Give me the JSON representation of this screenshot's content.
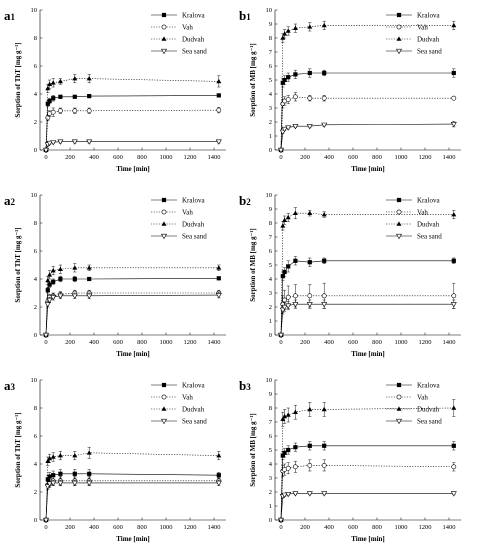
{
  "figure": {
    "legend_names": [
      "Kralova",
      "Vah",
      "Dudvah",
      "Sea sand"
    ],
    "x_label": "Time [min]",
    "x_ticks": [
      0,
      200,
      400,
      600,
      800,
      1000,
      1200,
      1400
    ]
  },
  "chart_data": [
    {
      "type": "line",
      "label": "a1",
      "label_letter": "a",
      "label_sub": "1",
      "xlim": [
        -50,
        1500
      ],
      "ylim": [
        0,
        10
      ],
      "yticks": [
        0,
        2,
        4,
        6,
        8,
        10
      ],
      "xlabel": "Time [min]",
      "ylabel": "Sorption of ThT [mg g⁻¹]",
      "x": [
        0,
        15,
        30,
        60,
        120,
        240,
        360,
        1440
      ],
      "series": [
        {
          "name": "Kralova",
          "marker": "square",
          "dash": "solid",
          "values": [
            0,
            3.3,
            3.5,
            3.7,
            3.8,
            3.8,
            3.85,
            3.9
          ],
          "errors": [
            0,
            0.2,
            0.2,
            0.2,
            0.1,
            0.1,
            0.1,
            0.1
          ]
        },
        {
          "name": "Vah",
          "marker": "circle",
          "dash": "dot",
          "values": [
            0,
            2.3,
            2.6,
            2.7,
            2.8,
            2.8,
            2.8,
            2.85
          ],
          "errors": [
            0,
            0.2,
            0.2,
            0.3,
            0.2,
            0.2,
            0.2,
            0.2
          ]
        },
        {
          "name": "Dudvah",
          "marker": "triangle",
          "dash": "dot",
          "values": [
            0,
            4.4,
            4.7,
            4.8,
            4.9,
            5.1,
            5.1,
            4.9
          ],
          "errors": [
            0,
            0.3,
            0.3,
            0.3,
            0.2,
            0.3,
            0.3,
            0.4
          ]
        },
        {
          "name": "Sea sand",
          "marker": "triangle-down",
          "dash": "solid",
          "values": [
            0,
            0.4,
            0.5,
            0.55,
            0.6,
            0.6,
            0.6,
            0.6
          ],
          "errors": [
            0,
            0.1,
            0.1,
            0.1,
            0.1,
            0.1,
            0.1,
            0.1
          ]
        }
      ]
    },
    {
      "type": "line",
      "label": "b1",
      "label_letter": "b",
      "label_sub": "1",
      "xlim": [
        -50,
        1500
      ],
      "ylim": [
        0,
        10
      ],
      "yticks": [
        0,
        1,
        2,
        3,
        4,
        5,
        6,
        7,
        8,
        9,
        10
      ],
      "xlabel": "Time [min]",
      "ylabel": "Sorption of MB [mg g⁻¹]",
      "x": [
        0,
        15,
        30,
        60,
        120,
        240,
        360,
        1440
      ],
      "series": [
        {
          "name": "Kralova",
          "marker": "square",
          "dash": "solid",
          "values": [
            0,
            4.8,
            5.0,
            5.2,
            5.4,
            5.5,
            5.5,
            5.5
          ],
          "errors": [
            0,
            0.3,
            0.3,
            0.3,
            0.3,
            0.3,
            0.2,
            0.3
          ]
        },
        {
          "name": "Vah",
          "marker": "circle",
          "dash": "dot",
          "values": [
            0,
            3.3,
            3.5,
            3.6,
            3.8,
            3.7,
            3.7,
            3.7
          ],
          "errors": [
            0,
            0.3,
            0.3,
            0.3,
            0.3,
            0.2,
            0.2,
            0.1
          ]
        },
        {
          "name": "Dudvah",
          "marker": "triangle",
          "dash": "dot",
          "values": [
            0,
            8.0,
            8.3,
            8.5,
            8.7,
            8.8,
            8.9,
            8.9
          ],
          "errors": [
            0,
            0.3,
            0.3,
            0.3,
            0.3,
            0.3,
            0.3,
            0.3
          ]
        },
        {
          "name": "Sea sand",
          "marker": "triangle-down",
          "dash": "solid",
          "values": [
            0,
            1.3,
            1.5,
            1.6,
            1.7,
            1.7,
            1.8,
            1.85
          ],
          "errors": [
            0,
            0.1,
            0.1,
            0.1,
            0.1,
            0.1,
            0.1,
            0.2
          ]
        }
      ]
    },
    {
      "type": "line",
      "label": "a2",
      "label_letter": "a",
      "label_sub": "2",
      "xlim": [
        -50,
        1500
      ],
      "ylim": [
        0,
        10
      ],
      "yticks": [
        0,
        2,
        4,
        6,
        8,
        10
      ],
      "xlabel": "Time [min]",
      "ylabel": "Sorption of ThT [mg g⁻¹]",
      "x": [
        0,
        15,
        30,
        60,
        120,
        240,
        360,
        1440
      ],
      "series": [
        {
          "name": "Kralova",
          "marker": "square",
          "dash": "solid",
          "values": [
            0,
            3.2,
            3.6,
            3.8,
            4.0,
            4.0,
            4.0,
            4.05
          ],
          "errors": [
            0,
            0.2,
            0.2,
            0.2,
            0.2,
            0.2,
            0.1,
            0.1
          ]
        },
        {
          "name": "Vah",
          "marker": "circle",
          "dash": "dot",
          "values": [
            0,
            2.4,
            2.7,
            2.8,
            2.9,
            3.0,
            3.0,
            3.0
          ],
          "errors": [
            0,
            0.2,
            0.2,
            0.2,
            0.2,
            0.2,
            0.2,
            0.2
          ]
        },
        {
          "name": "Dudvah",
          "marker": "triangle",
          "dash": "dot",
          "values": [
            0,
            3.9,
            4.3,
            4.6,
            4.7,
            4.8,
            4.8,
            4.8
          ],
          "errors": [
            0,
            0.3,
            0.3,
            0.3,
            0.3,
            0.3,
            0.2,
            0.2
          ]
        },
        {
          "name": "Sea sand",
          "marker": "triangle-down",
          "dash": "solid",
          "values": [
            0,
            2.2,
            2.5,
            2.7,
            2.8,
            2.8,
            2.8,
            2.85
          ],
          "errors": [
            0,
            0.2,
            0.2,
            0.2,
            0.2,
            0.2,
            0.2,
            0.2
          ]
        }
      ]
    },
    {
      "type": "line",
      "label": "b2",
      "label_letter": "b",
      "label_sub": "2",
      "xlim": [
        -50,
        1500
      ],
      "ylim": [
        0,
        10
      ],
      "yticks": [
        0,
        1,
        2,
        3,
        4,
        5,
        6,
        7,
        8,
        9,
        10
      ],
      "xlabel": "Time [min]",
      "ylabel": "Sorption of MB [mg g⁻¹]",
      "x": [
        0,
        15,
        30,
        60,
        120,
        240,
        360,
        1440
      ],
      "series": [
        {
          "name": "Kralova",
          "marker": "square",
          "dash": "solid",
          "values": [
            0,
            4.2,
            4.5,
            4.9,
            5.3,
            5.2,
            5.3,
            5.3
          ],
          "errors": [
            0,
            0.3,
            0.3,
            0.4,
            0.3,
            0.3,
            0.2,
            0.2
          ]
        },
        {
          "name": "Vah",
          "marker": "circle",
          "dash": "dot",
          "values": [
            0,
            2.2,
            2.5,
            2.7,
            2.8,
            2.8,
            2.8,
            2.8
          ],
          "errors": [
            0,
            0.6,
            0.7,
            0.8,
            0.8,
            0.8,
            0.9,
            0.9
          ]
        },
        {
          "name": "Dudvah",
          "marker": "triangle",
          "dash": "dot",
          "values": [
            0,
            7.8,
            8.2,
            8.4,
            8.7,
            8.7,
            8.6,
            8.6
          ],
          "errors": [
            0,
            0.3,
            0.3,
            0.3,
            0.4,
            0.2,
            0.2,
            0.3
          ]
        },
        {
          "name": "Sea sand",
          "marker": "triangle-down",
          "dash": "solid",
          "values": [
            0,
            1.8,
            2.0,
            2.1,
            2.2,
            2.2,
            2.2,
            2.2
          ],
          "errors": [
            0,
            0.3,
            0.3,
            0.3,
            0.3,
            0.3,
            0.3,
            0.3
          ]
        }
      ]
    },
    {
      "type": "line",
      "label": "a3",
      "label_letter": "a",
      "label_sub": "3",
      "xlim": [
        -50,
        1500
      ],
      "ylim": [
        0,
        10
      ],
      "yticks": [
        0,
        2,
        4,
        6,
        8,
        10
      ],
      "xlabel": "Time [min]",
      "ylabel": "Sorption of ThT [mg g⁻¹]",
      "x": [
        0,
        15,
        30,
        60,
        120,
        240,
        360,
        1440
      ],
      "series": [
        {
          "name": "Kralova",
          "marker": "square",
          "dash": "solid",
          "values": [
            0,
            2.9,
            3.1,
            3.2,
            3.3,
            3.3,
            3.3,
            3.2
          ],
          "errors": [
            0,
            0.3,
            0.3,
            0.3,
            0.3,
            0.3,
            0.3,
            0.2
          ]
        },
        {
          "name": "Vah",
          "marker": "circle",
          "dash": "dot",
          "values": [
            0,
            2.5,
            2.6,
            2.8,
            2.8,
            2.8,
            2.8,
            2.8
          ],
          "errors": [
            0,
            0.3,
            0.3,
            0.3,
            0.3,
            0.3,
            0.3,
            0.2
          ]
        },
        {
          "name": "Dudvah",
          "marker": "triangle",
          "dash": "dot",
          "values": [
            0,
            4.2,
            4.4,
            4.5,
            4.6,
            4.6,
            4.8,
            4.6
          ],
          "errors": [
            0,
            0.3,
            0.3,
            0.3,
            0.3,
            0.3,
            0.4,
            0.3
          ]
        },
        {
          "name": "Sea sand",
          "marker": "triangle-down",
          "dash": "solid",
          "values": [
            0,
            2.4,
            2.6,
            2.65,
            2.65,
            2.65,
            2.65,
            2.65
          ],
          "errors": [
            0,
            0.2,
            0.2,
            0.2,
            0.2,
            0.2,
            0.2,
            0.2
          ]
        }
      ]
    },
    {
      "type": "line",
      "label": "b3",
      "label_letter": "b",
      "label_sub": "3",
      "xlim": [
        -50,
        1500
      ],
      "ylim": [
        0,
        10
      ],
      "yticks": [
        0,
        1,
        2,
        3,
        4,
        5,
        6,
        7,
        8,
        9,
        10
      ],
      "xlabel": "Time [min]",
      "ylabel": "Sorption of MB [mg g⁻¹]",
      "x": [
        0,
        15,
        30,
        60,
        120,
        240,
        360,
        1440
      ],
      "series": [
        {
          "name": "Kralova",
          "marker": "square",
          "dash": "solid",
          "values": [
            0,
            4.6,
            4.8,
            5.0,
            5.2,
            5.3,
            5.3,
            5.3
          ],
          "errors": [
            0,
            0.3,
            0.3,
            0.3,
            0.3,
            0.3,
            0.3,
            0.3
          ]
        },
        {
          "name": "Vah",
          "marker": "circle",
          "dash": "dot",
          "values": [
            0,
            3.5,
            3.6,
            3.7,
            3.8,
            3.9,
            3.9,
            3.8
          ],
          "errors": [
            0,
            0.4,
            0.4,
            0.4,
            0.4,
            0.4,
            0.4,
            0.3
          ]
        },
        {
          "name": "Dudvah",
          "marker": "triangle",
          "dash": "dot",
          "values": [
            0,
            7.2,
            7.4,
            7.5,
            7.7,
            7.9,
            7.9,
            8.0
          ],
          "errors": [
            0,
            0.5,
            0.5,
            0.5,
            0.5,
            0.5,
            0.5,
            0.6
          ]
        },
        {
          "name": "Sea sand",
          "marker": "triangle-down",
          "dash": "solid",
          "values": [
            0,
            1.7,
            1.8,
            1.85,
            1.9,
            1.9,
            1.9,
            1.9
          ],
          "errors": [
            0,
            0.1,
            0.1,
            0.1,
            0.1,
            0.1,
            0.1,
            0.1
          ]
        }
      ]
    }
  ]
}
